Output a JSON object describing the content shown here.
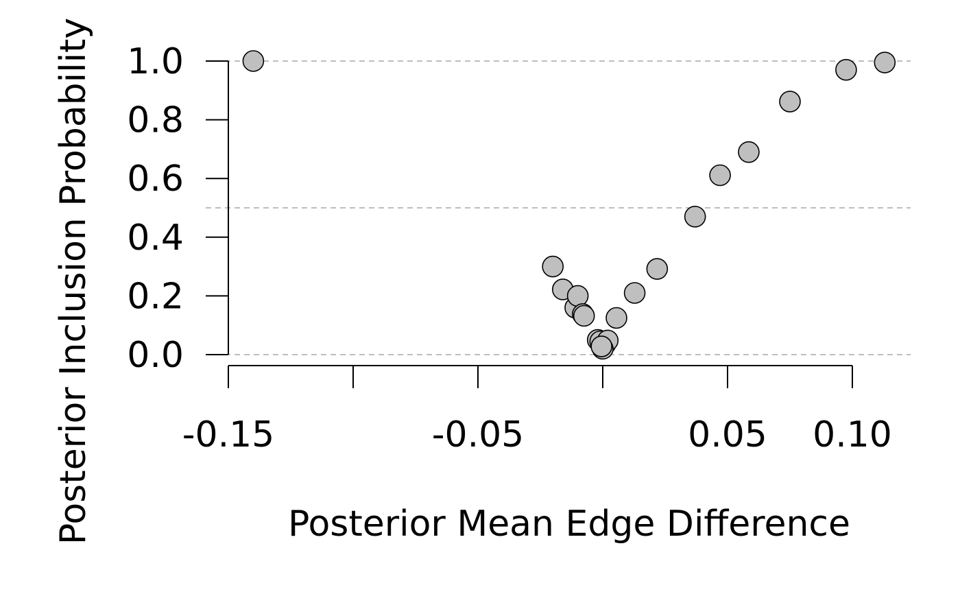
{
  "chart_data": {
    "type": "scatter",
    "title": "",
    "xlabel": "Posterior Mean Edge Difference",
    "ylabel": "Posterior Inclusion Probability",
    "xlim": [
      -0.15,
      0.1
    ],
    "ylim": [
      0.0,
      1.0
    ],
    "x_ticks": [
      -0.15,
      -0.1,
      -0.05,
      0.0,
      0.05,
      0.1
    ],
    "x_tick_labels": [
      "-0.15",
      "",
      "-0.05",
      "",
      "0.05",
      "0.10"
    ],
    "y_ticks": [
      0.0,
      0.2,
      0.4,
      0.6,
      0.8,
      1.0
    ],
    "y_tick_labels": [
      "0.0",
      "0.2",
      "0.4",
      "0.6",
      "0.8",
      "1.0"
    ],
    "reference_lines_y": [
      0.0,
      0.5,
      1.0
    ],
    "point_fill": "#bfbfbf",
    "point_stroke": "#000000",
    "reference_line_color": "#bdbdbd",
    "grid": false,
    "points": [
      {
        "x": -0.14,
        "y": 1.0
      },
      {
        "x": -0.02,
        "y": 0.3
      },
      {
        "x": -0.016,
        "y": 0.222
      },
      {
        "x": -0.011,
        "y": 0.16
      },
      {
        "x": -0.01,
        "y": 0.2
      },
      {
        "x": -0.008,
        "y": 0.138
      },
      {
        "x": -0.0075,
        "y": 0.132
      },
      {
        "x": -0.002,
        "y": 0.05
      },
      {
        "x": -0.001,
        "y": 0.045
      },
      {
        "x": 0.001,
        "y": 0.035
      },
      {
        "x": 0.002,
        "y": 0.048
      },
      {
        "x": 0.0,
        "y": 0.02
      },
      {
        "x": -0.0005,
        "y": 0.028
      },
      {
        "x": 0.0055,
        "y": 0.125
      },
      {
        "x": 0.0128,
        "y": 0.21
      },
      {
        "x": 0.0218,
        "y": 0.292
      },
      {
        "x": 0.037,
        "y": 0.47
      },
      {
        "x": 0.047,
        "y": 0.611
      },
      {
        "x": 0.0585,
        "y": 0.69
      },
      {
        "x": 0.075,
        "y": 0.862
      },
      {
        "x": 0.0975,
        "y": 0.97
      },
      {
        "x": 0.113,
        "y": 0.995
      }
    ]
  }
}
